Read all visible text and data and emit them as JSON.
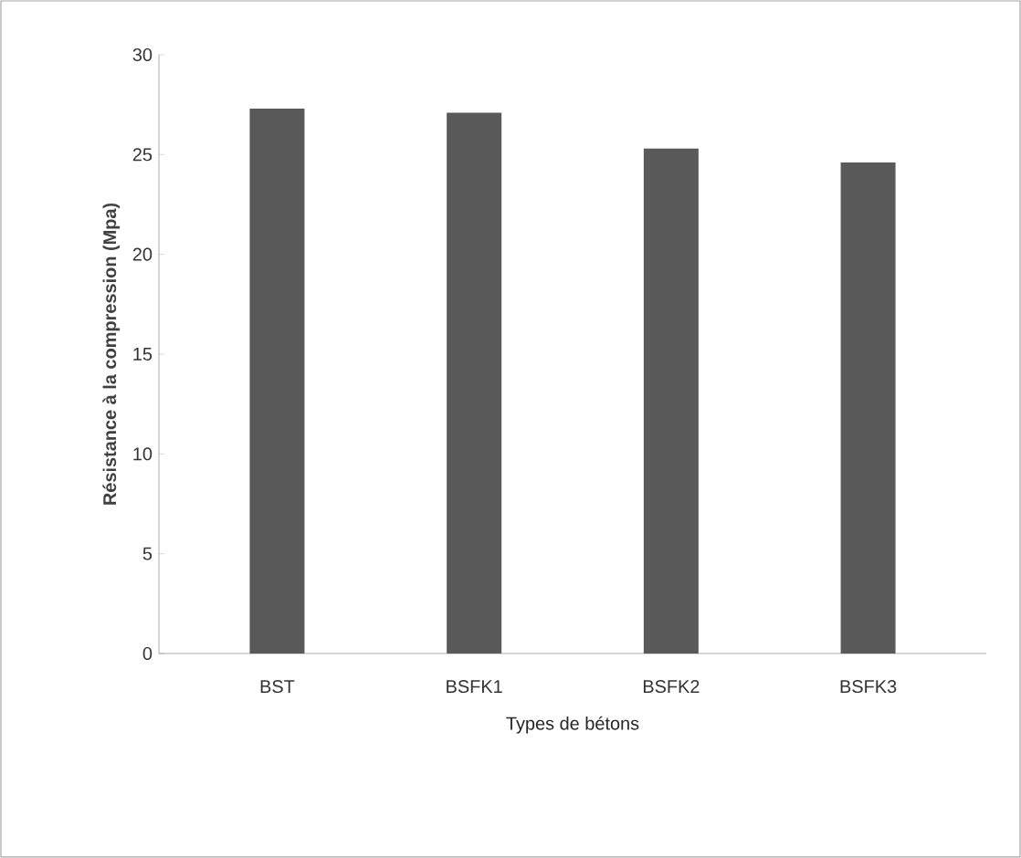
{
  "chart_data": {
    "type": "bar",
    "xlabel": "Types de bétons",
    "ylabel": "Résistance à la compression (Mpa)",
    "categories": [
      "BST",
      "BSFK1",
      "BSFK2",
      "BSFK3"
    ],
    "values": [
      27.3,
      27.1,
      25.3,
      24.6
    ],
    "color": "#595959",
    "ylim": [
      0,
      30
    ],
    "yticks": [
      0,
      5,
      10,
      15,
      20,
      25,
      30
    ],
    "grid": false
  }
}
